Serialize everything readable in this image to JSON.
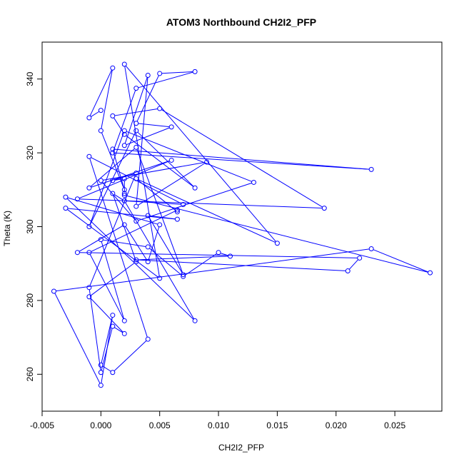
{
  "chart_data": {
    "type": "line",
    "title": "ATOM3 Northbound CH2I2_PFP",
    "xlabel": "CH2I2_PFP",
    "ylabel": "Theta (K)",
    "xlim": [
      -0.005,
      0.029
    ],
    "ylim": [
      250,
      350
    ],
    "grid": false,
    "legend": "none",
    "colors": {
      "series": "#0000ff",
      "axis": "#000000"
    },
    "x_ticks": [
      -0.005,
      0.0,
      0.005,
      0.01,
      0.015,
      0.02,
      0.025
    ],
    "x_tick_labels": [
      "-0.005",
      "0.000",
      "0.005",
      "0.010",
      "0.015",
      "0.020",
      "0.025"
    ],
    "y_ticks": [
      260,
      280,
      300,
      320,
      340
    ],
    "y_tick_labels": [
      "260",
      "280",
      "300",
      "320",
      "340"
    ],
    "series": [
      {
        "x": [
          0.0,
          -0.001,
          0.001,
          0.0,
          0.002,
          0.001,
          0.023,
          0.001,
          0.003,
          0.008,
          0.005,
          0.003,
          0.006,
          0.002,
          0.004,
          0.003,
          0.009,
          0.0,
          0.003,
          0.013,
          0.002,
          -0.001,
          0.003,
          0.008,
          0.002,
          0.001,
          0.005,
          0.019,
          -0.002,
          0.006,
          -0.001,
          0.003,
          0.007,
          0.004,
          0.0065,
          -0.003,
          0.005,
          0.002,
          0.015,
          0.003,
          0.0065,
          0.0065,
          -0.001,
          0.002,
          0.0,
          0.004,
          0.007,
          0.01,
          0.011,
          0.003,
          0.021,
          0.022,
          -0.002,
          0.002,
          0.004,
          0.005,
          -0.003,
          0.008,
          0.002,
          0.007,
          -0.001,
          0.004,
          0.001,
          0.0,
          0.001,
          0.0,
          -0.004,
          0.023,
          0.028,
          0.002,
          0.002,
          0.002,
          0.001,
          0.003,
          -0.001,
          0.0,
          0.001,
          0.002,
          -0.001,
          0.003,
          0.001,
          0.002
        ],
        "y": [
          331.5,
          329.5,
          343,
          326,
          310,
          321,
          315.5,
          320,
          337.5,
          342,
          341.5,
          328,
          327,
          322,
          341,
          305.5,
          317.5,
          312.5,
          301.5,
          312,
          326,
          300,
          326,
          310.5,
          325,
          330,
          332,
          305,
          307.5,
          318,
          310.5,
          321.5,
          287,
          303,
          302,
          305,
          286,
          344,
          295.5,
          313,
          304,
          304.5,
          293,
          274.5,
          296.5,
          294.5,
          286.5,
          293,
          292,
          291,
          288,
          291.5,
          293,
          300.5,
          290.5,
          300.5,
          308,
          274.5,
          307,
          306,
          319,
          269.5,
          260.5,
          262.5,
          276,
          257,
          282.5,
          294,
          287.5,
          308.5,
          309,
          313,
          312.5,
          314.5,
          283.5,
          260.5,
          273,
          271,
          281,
          290.5,
          309,
          307
        ]
      }
    ]
  }
}
